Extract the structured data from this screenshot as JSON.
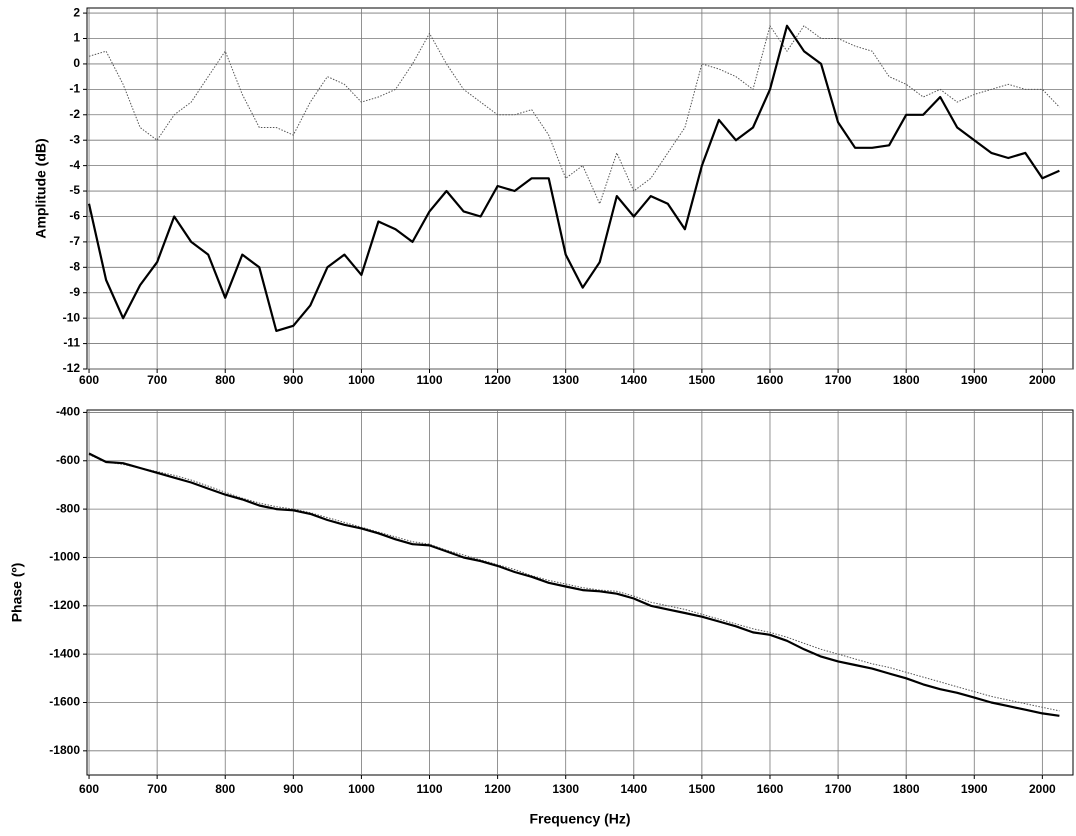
{
  "chart_data": [
    {
      "type": "line",
      "y_label": "Amplitude (dB)",
      "grid": true,
      "x": [
        600,
        625,
        650,
        675,
        700,
        725,
        750,
        775,
        800,
        825,
        850,
        875,
        900,
        925,
        950,
        975,
        1000,
        1025,
        1050,
        1075,
        1100,
        1125,
        1150,
        1175,
        1200,
        1225,
        1250,
        1275,
        1300,
        1325,
        1350,
        1375,
        1400,
        1425,
        1450,
        1475,
        1500,
        1525,
        1550,
        1575,
        1600,
        1625,
        1650,
        1675,
        1700,
        1725,
        1750,
        1775,
        1800,
        1825,
        1850,
        1875,
        1900,
        1925,
        1950,
        1975,
        2000,
        2025
      ],
      "xlim": [
        597,
        2045
      ],
      "xticks": [
        600,
        700,
        800,
        900,
        1000,
        1100,
        1200,
        1300,
        1400,
        1500,
        1600,
        1700,
        1800,
        1900,
        2000
      ],
      "ylim": [
        -12,
        2.2
      ],
      "yticks": [
        -12,
        -11,
        -10,
        -9,
        -8,
        -7,
        -6,
        -5,
        -4,
        -3,
        -2,
        -1,
        0,
        1,
        2
      ],
      "series": [
        {
          "color": "#000000",
          "style": "solid",
          "values": [
            -5.5,
            -8.5,
            -10,
            -8.7,
            -7.8,
            -6,
            -7,
            -7.5,
            -9.2,
            -7.5,
            -8,
            -10.5,
            -10.3,
            -9.5,
            -8,
            -7.5,
            -8.3,
            -6.2,
            -6.5,
            -7,
            -5.8,
            -5,
            -5.8,
            -6,
            -4.8,
            -5,
            -4.5,
            -4.5,
            -7.5,
            -8.8,
            -7.8,
            -5.2,
            -6,
            -5.2,
            -5.5,
            -6.5,
            -4,
            -2.2,
            -3,
            -2.5,
            -1,
            1.5,
            0.5,
            0,
            -2.3,
            -3.3,
            -3.3,
            -3.2,
            -2,
            -2,
            -1.3,
            -2.5,
            -3,
            -3.5,
            -3.7,
            -3.5,
            -4.5,
            -4.2
          ]
        },
        {
          "color": "#555555",
          "style": "dotted",
          "values": [
            0.3,
            0.5,
            -0.8,
            -2.5,
            -3,
            -2,
            -1.5,
            -0.5,
            0.5,
            -1.2,
            -2.5,
            -2.5,
            -2.8,
            -1.5,
            -0.5,
            -0.8,
            -1.5,
            -1.3,
            -1,
            0,
            1.2,
            0,
            -1,
            -1.5,
            -2,
            -2,
            -1.8,
            -2.8,
            -4.5,
            -4,
            -5.5,
            -3.5,
            -5,
            -4.5,
            -3.5,
            -2.5,
            0,
            -0.2,
            -0.5,
            -1,
            1.5,
            0.5,
            1.5,
            1,
            1,
            0.7,
            0.5,
            -0.5,
            -0.8,
            -1.3,
            -1,
            -1.5,
            -1.2,
            -1,
            -0.8,
            -1,
            -1,
            -1.7
          ]
        }
      ]
    },
    {
      "type": "line",
      "x_label": "Frequency (Hz)",
      "y_label": "Phase (º)",
      "grid": true,
      "x": [
        600,
        625,
        650,
        675,
        700,
        725,
        750,
        775,
        800,
        825,
        850,
        875,
        900,
        925,
        950,
        975,
        1000,
        1025,
        1050,
        1075,
        1100,
        1125,
        1150,
        1175,
        1200,
        1225,
        1250,
        1275,
        1300,
        1325,
        1350,
        1375,
        1400,
        1425,
        1450,
        1475,
        1500,
        1525,
        1550,
        1575,
        1600,
        1625,
        1650,
        1675,
        1700,
        1725,
        1750,
        1775,
        1800,
        1825,
        1850,
        1875,
        1900,
        1925,
        1950,
        1975,
        2000,
        2025
      ],
      "xlim": [
        597,
        2045
      ],
      "xticks": [
        600,
        700,
        800,
        900,
        1000,
        1100,
        1200,
        1300,
        1400,
        1500,
        1600,
        1700,
        1800,
        1900,
        2000
      ],
      "ylim": [
        -1900,
        -390
      ],
      "yticks": [
        -1800,
        -1600,
        -1400,
        -1200,
        -1000,
        -800,
        -600,
        -400
      ],
      "series": [
        {
          "color": "#000000",
          "style": "solid",
          "values": [
            -570,
            -605,
            -610,
            -630,
            -650,
            -670,
            -690,
            -715,
            -740,
            -760,
            -785,
            -800,
            -805,
            -820,
            -845,
            -865,
            -880,
            -900,
            -925,
            -945,
            -950,
            -975,
            -1000,
            -1015,
            -1035,
            -1060,
            -1080,
            -1105,
            -1120,
            -1135,
            -1140,
            -1150,
            -1170,
            -1200,
            -1215,
            -1230,
            -1245,
            -1265,
            -1285,
            -1310,
            -1320,
            -1345,
            -1380,
            -1410,
            -1430,
            -1445,
            -1460,
            -1480,
            -1500,
            -1525,
            -1545,
            -1560,
            -1580,
            -1600,
            -1615,
            -1630,
            -1645,
            -1655
          ]
        },
        {
          "color": "#555555",
          "style": "dotted",
          "values": [
            -575,
            -605,
            -615,
            -630,
            -645,
            -660,
            -680,
            -705,
            -730,
            -755,
            -775,
            -790,
            -800,
            -815,
            -835,
            -855,
            -875,
            -895,
            -915,
            -935,
            -945,
            -970,
            -990,
            -1010,
            -1030,
            -1050,
            -1075,
            -1095,
            -1110,
            -1125,
            -1135,
            -1140,
            -1160,
            -1185,
            -1200,
            -1215,
            -1235,
            -1255,
            -1275,
            -1295,
            -1310,
            -1330,
            -1355,
            -1380,
            -1400,
            -1420,
            -1440,
            -1455,
            -1475,
            -1495,
            -1515,
            -1535,
            -1555,
            -1575,
            -1590,
            -1605,
            -1620,
            -1635
          ]
        }
      ]
    }
  ]
}
